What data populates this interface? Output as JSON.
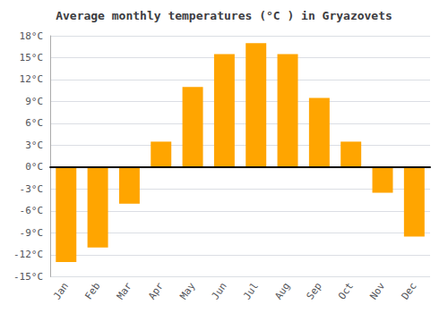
{
  "chart_data": {
    "type": "bar",
    "title": "Average monthly temperatures (°C ) in Gryazovets",
    "categories": [
      "Jan",
      "Feb",
      "Mar",
      "Apr",
      "May",
      "Jun",
      "Jul",
      "Aug",
      "Sep",
      "Oct",
      "Nov",
      "Dec"
    ],
    "values": [
      -13,
      -11,
      -5,
      3.5,
      11,
      15.5,
      17,
      15.5,
      9.5,
      3.5,
      -3.5,
      -9.5
    ],
    "color": "#FFA500",
    "ylim": [
      -15,
      18
    ],
    "yticks": [
      {
        "value": -15,
        "label": "-15°C"
      },
      {
        "value": -12,
        "label": "-12°C"
      },
      {
        "value": -9,
        "label": "-9°C"
      },
      {
        "value": -6,
        "label": "-6°C"
      },
      {
        "value": -3,
        "label": "-3°C"
      },
      {
        "value": 0,
        "label": "0°C"
      },
      {
        "value": 3,
        "label": "3°C"
      },
      {
        "value": 6,
        "label": "6°C"
      },
      {
        "value": 9,
        "label": "9°C"
      },
      {
        "value": 12,
        "label": "12°C"
      },
      {
        "value": 15,
        "label": "15°C"
      },
      {
        "value": 18,
        "label": "18°C"
      }
    ],
    "grid": true
  }
}
